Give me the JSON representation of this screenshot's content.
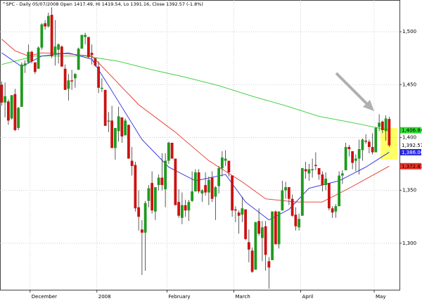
{
  "chart_data": {
    "type": "candlestick",
    "title": "^SPC - Daily 05/07/2008 Open 1417.49, Hi 1419.54, Lo 1391.16, Close 1392.57 (-1.8%)",
    "categories": [
      null,
      null,
      null,
      null,
      null,
      null,
      null,
      null,
      null,
      "December",
      null,
      null,
      null,
      null,
      null,
      null,
      null,
      null,
      null,
      null,
      null,
      null,
      null,
      null,
      null,
      null,
      null,
      null,
      null,
      "2008",
      null,
      null,
      null,
      null,
      null,
      null,
      null,
      null,
      null,
      null,
      null,
      null,
      null,
      null,
      null,
      null,
      null,
      null,
      null,
      null,
      "February",
      null,
      null,
      null,
      null,
      null,
      null,
      null,
      null,
      null,
      null,
      null,
      null,
      null,
      null,
      null,
      null,
      null,
      null,
      null,
      "March",
      null,
      null,
      null,
      null,
      null,
      null,
      null,
      null,
      null,
      null,
      null,
      null,
      null,
      null,
      null,
      null,
      null,
      null,
      null,
      "April",
      null,
      null,
      null,
      null,
      null,
      null,
      null,
      null,
      null,
      null,
      null,
      null,
      null,
      null,
      null,
      null,
      null,
      null,
      null,
      null,
      null,
      "May",
      null,
      null,
      null,
      null
    ],
    "ohlc": {
      "open": [
        1450,
        1433,
        1434,
        1418,
        1441,
        1409,
        1429,
        1468,
        1471,
        1481,
        1471,
        1465,
        1485,
        1508,
        1505,
        1516,
        1478,
        1483,
        1486,
        1465,
        1446,
        1454,
        1456,
        1464,
        1484,
        1495,
        1495,
        1480,
        1475,
        1467,
        1446,
        1445,
        1415,
        1416,
        1390,
        1406,
        1419,
        1402,
        1412,
        1378,
        1374,
        1334,
        1313,
        1310,
        1340,
        1357,
        1330,
        1355,
        1362,
        1351,
        1378,
        1395,
        1380,
        1339,
        1324,
        1336,
        1331,
        1340,
        1349,
        1367,
        1347,
        1355,
        1348,
        1362,
        1344,
        1354,
        1371,
        1378,
        1378,
        1364,
        1332,
        1329,
        1327,
        1332,
        1301,
        1293,
        1275,
        1321,
        1305,
        1316,
        1283,
        1284,
        1330,
        1299,
        1331,
        1350,
        1353,
        1342,
        1327,
        1315,
        1326,
        1370,
        1366,
        1369,
        1374,
        1371,
        1365,
        1355,
        1357,
        1333,
        1330,
        1335,
        1364,
        1369,
        1391,
        1387,
        1378,
        1380,
        1388,
        1397,
        1396,
        1391,
        1386,
        1410,
        1415,
        1406,
        1417.49
      ],
      "high": [
        1453,
        1452,
        1436,
        1440,
        1446,
        1429,
        1471,
        1473,
        1488,
        1482,
        1471,
        1486,
        1508,
        1511,
        1518,
        1523,
        1511,
        1489,
        1487,
        1469,
        1460,
        1464,
        1461,
        1485,
        1497,
        1499,
        1495,
        1488,
        1475,
        1472,
        1456,
        1445,
        1424,
        1430,
        1409,
        1429,
        1419,
        1418,
        1412,
        1391,
        1377,
        1350,
        1322,
        1340,
        1355,
        1368,
        1353,
        1365,
        1385,
        1385,
        1396,
        1395,
        1380,
        1351,
        1348,
        1341,
        1341,
        1368,
        1370,
        1370,
        1351,
        1367,
        1363,
        1368,
        1354,
        1373,
        1387,
        1388,
        1378,
        1364,
        1335,
        1331,
        1344,
        1332,
        1313,
        1296,
        1320,
        1333,
        1321,
        1321,
        1287,
        1330,
        1331,
        1330,
        1359,
        1358,
        1353,
        1346,
        1334,
        1328,
        1371,
        1377,
        1375,
        1380,
        1386,
        1371,
        1368,
        1367,
        1357,
        1335,
        1337,
        1368,
        1369,
        1395,
        1393,
        1387,
        1384,
        1398,
        1399,
        1403,
        1398,
        1404,
        1410,
        1422,
        1416,
        1421,
        1419.54
      ],
      "low": [
        1430,
        1419,
        1412,
        1417,
        1406,
        1407,
        1429,
        1461,
        1470,
        1470,
        1460,
        1465,
        1483,
        1502,
        1504,
        1475,
        1468,
        1470,
        1467,
        1445,
        1435,
        1445,
        1447,
        1464,
        1484,
        1488,
        1475,
        1469,
        1467,
        1442,
        1443,
        1411,
        1405,
        1390,
        1379,
        1396,
        1395,
        1402,
        1380,
        1364,
        1330,
        1312,
        1270,
        1274,
        1334,
        1328,
        1322,
        1350,
        1350,
        1334,
        1375,
        1380,
        1336,
        1324,
        1318,
        1325,
        1321,
        1339,
        1349,
        1347,
        1339,
        1345,
        1336,
        1339,
        1322,
        1347,
        1363,
        1373,
        1363,
        1325,
        1320,
        1309,
        1320,
        1303,
        1282,
        1272,
        1275,
        1307,
        1283,
        1274,
        1257,
        1284,
        1299,
        1295,
        1331,
        1342,
        1336,
        1325,
        1312,
        1312,
        1326,
        1361,
        1359,
        1362,
        1369,
        1360,
        1349,
        1350,
        1331,
        1324,
        1324,
        1335,
        1356,
        1369,
        1382,
        1370,
        1368,
        1365,
        1378,
        1394,
        1385,
        1384,
        1386,
        1406,
        1404,
        1397,
        1391.16
      ],
      "close": [
        1433,
        1439,
        1416,
        1440,
        1407,
        1428,
        1469,
        1470,
        1481,
        1472,
        1462,
        1485,
        1507,
        1505,
        1515,
        1477,
        1486,
        1488,
        1467,
        1445,
        1454,
        1453,
        1460,
        1484,
        1497,
        1497,
        1476,
        1478,
        1468,
        1447,
        1447,
        1411,
        1416,
        1390,
        1409,
        1420,
        1401,
        1416,
        1380,
        1373,
        1333,
        1325,
        1310,
        1338,
        1352,
        1331,
        1353,
        1362,
        1355,
        1378,
        1395,
        1380,
        1336,
        1326,
        1336,
        1331,
        1339,
        1349,
        1367,
        1349,
        1350,
        1348,
        1360,
        1342,
        1353,
        1371,
        1381,
        1380,
        1367,
        1331,
        1331,
        1326,
        1333,
        1304,
        1294,
        1273,
        1320,
        1309,
        1315,
        1289,
        1277,
        1330,
        1299,
        1330,
        1350,
        1353,
        1342,
        1326,
        1316,
        1323,
        1371,
        1368,
        1370,
        1370,
        1373,
        1365,
        1355,
        1361,
        1333,
        1329,
        1335,
        1364,
        1366,
        1391,
        1389,
        1376,
        1380,
        1389,
        1398,
        1396,
        1391,
        1386,
        1409,
        1414,
        1407,
        1418,
        1392.57
      ]
    },
    "up_color": "#1e9a1e",
    "down_color": "#cc1111",
    "lines": [
      {
        "color": "#33cc33",
        "x": [
          0,
          10,
          25,
          35,
          45,
          55,
          65,
          75,
          85,
          95,
          105,
          116
        ],
        "values": [
          1469,
          1477,
          1477,
          1472,
          1464,
          1457,
          1449,
          1439,
          1430,
          1420,
          1414,
          1406.84
        ]
      },
      {
        "color": "#e8332a",
        "x": [
          0,
          4,
          8,
          12,
          20,
          27,
          31,
          41,
          52,
          62,
          72,
          79,
          88,
          96,
          104,
          116
        ],
        "values": [
          1493,
          1482,
          1477,
          1480,
          1479,
          1477,
          1464,
          1431,
          1405,
          1378,
          1358,
          1342,
          1339,
          1339,
          1352,
          1372.83
        ]
      },
      {
        "color": "#2a2ae0",
        "x": [
          0,
          6,
          12,
          20,
          27,
          33,
          42,
          50,
          58,
          67,
          73,
          80,
          86,
          92,
          101,
          109,
          116
        ],
        "values": [
          1480,
          1467,
          1477,
          1480,
          1474,
          1444,
          1398,
          1372,
          1359,
          1365,
          1339,
          1322,
          1332,
          1352,
          1359,
          1372,
          1386.06
        ]
      }
    ],
    "last_labels": [
      {
        "value": 1406.84,
        "label": "1,406.84",
        "color": "#33dd33",
        "text_color": "#000000"
      },
      {
        "value": 1392.57,
        "label": "1,392.57",
        "color": "#ffffff",
        "text_color": "#000000"
      },
      {
        "value": 1386.06,
        "label": "1,386.06",
        "color": "#2a2ae0",
        "text_color": "#ffffff"
      },
      {
        "value": 1372.83,
        "label": "1,372.83",
        "color": "#e8332a",
        "text_color": "#000000"
      }
    ],
    "ylim": [
      1256,
      1530
    ],
    "yticks": [
      {
        "value": 1300,
        "label": "1,300"
      },
      {
        "value": 1350,
        "label": "1,350"
      },
      {
        "value": 1400,
        "label": "1,400"
      },
      {
        "value": 1450,
        "label": "1,450"
      },
      {
        "value": 1500,
        "label": "1,500"
      }
    ],
    "grid": true
  }
}
